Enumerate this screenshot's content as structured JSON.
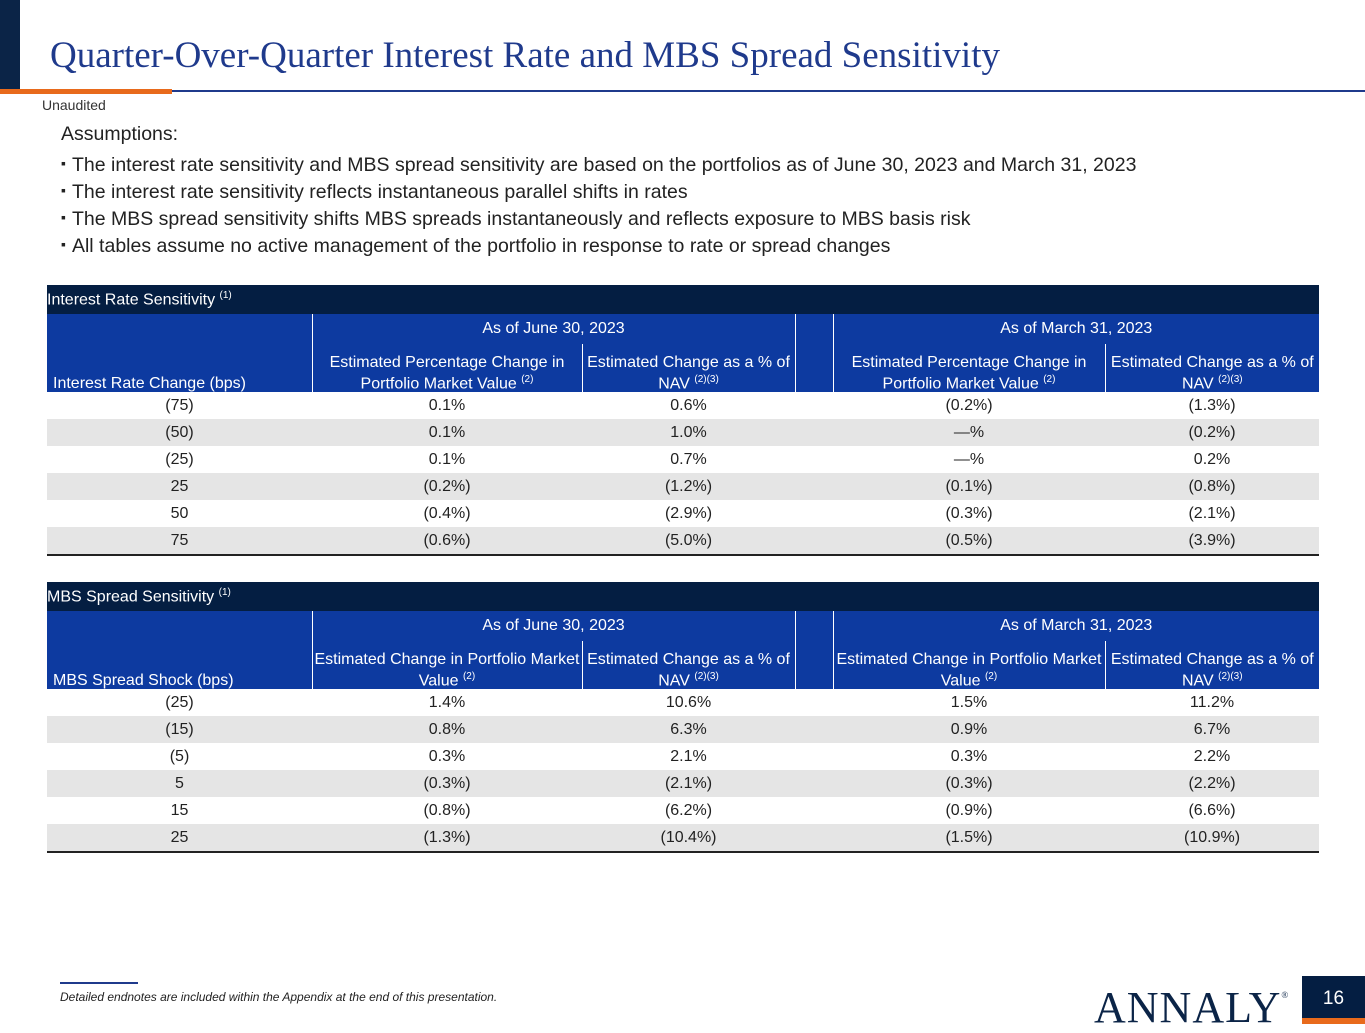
{
  "header": {
    "title": "Quarter-Over-Quarter Interest Rate and MBS Spread Sensitivity",
    "unaudited": "Unaudited"
  },
  "assumptions": {
    "heading": "Assumptions:",
    "bullets": [
      "The interest rate sensitivity and MBS spread sensitivity are based on the portfolios as of June 30, 2023 and March 31, 2023",
      "The interest rate sensitivity reflects instantaneous parallel shifts in rates",
      "The MBS spread sensitivity shifts MBS spreads instantaneously and reflects exposure to MBS basis risk",
      "All tables assume no active management of the portfolio in response to rate or spread changes"
    ]
  },
  "interest_rate_table": {
    "title": "Interest Rate Sensitivity",
    "title_note": "(1)",
    "period_1": "As of June 30, 2023",
    "period_2": "As of March 31, 2023",
    "row_label": "Interest Rate Change (bps)",
    "col_a": "Estimated Percentage Change in Portfolio Market Value",
    "col_a_note": "(2)",
    "col_b": "Estimated Change as a % of NAV",
    "col_b_note": "(2)(3)",
    "rows": [
      [
        "(75)",
        "0.1%",
        "0.6%",
        "(0.2%)",
        "(1.3%)"
      ],
      [
        "(50)",
        "0.1%",
        "1.0%",
        "—%",
        "(0.2%)"
      ],
      [
        "(25)",
        "0.1%",
        "0.7%",
        "—%",
        "0.2%"
      ],
      [
        "25",
        "(0.2%)",
        "(1.2%)",
        "(0.1%)",
        "(0.8%)"
      ],
      [
        "50",
        "(0.4%)",
        "(2.9%)",
        "(0.3%)",
        "(2.1%)"
      ],
      [
        "75",
        "(0.6%)",
        "(5.0%)",
        "(0.5%)",
        "(3.9%)"
      ]
    ]
  },
  "mbs_spread_table": {
    "title": "MBS Spread Sensitivity",
    "title_note": "(1)",
    "period_1": "As of June 30, 2023",
    "period_2": "As of March 31, 2023",
    "row_label": "MBS Spread Shock (bps)",
    "col_a": "Estimated Change in Portfolio Market Value",
    "col_a_note": "(2)",
    "col_b": "Estimated Change as a % of NAV",
    "col_b_note": "(2)(3)",
    "rows": [
      [
        "(25)",
        "1.4%",
        "10.6%",
        "1.5%",
        "11.2%"
      ],
      [
        "(15)",
        "0.8%",
        "6.3%",
        "0.9%",
        "6.7%"
      ],
      [
        "(5)",
        "0.3%",
        "2.1%",
        "0.3%",
        "2.2%"
      ],
      [
        "5",
        "(0.3%)",
        "(2.1%)",
        "(0.3%)",
        "(2.2%)"
      ],
      [
        "15",
        "(0.8%)",
        "(6.2%)",
        "(0.9%)",
        "(6.6%)"
      ],
      [
        "25",
        "(1.3%)",
        "(10.4%)",
        "(1.5%)",
        "(10.9%)"
      ]
    ]
  },
  "footer": {
    "footnote": "Detailed endnotes are included within the Appendix at the end of this presentation.",
    "logo_text": "ANNALY",
    "logo_mark": "®",
    "page_number": "16"
  },
  "colors": {
    "navy": "#041e42",
    "blue_header": "#0d3aa0",
    "title_blue": "#1f3a8c",
    "accent_orange": "#e86a1c",
    "row_alt": "#e5e5e5"
  }
}
